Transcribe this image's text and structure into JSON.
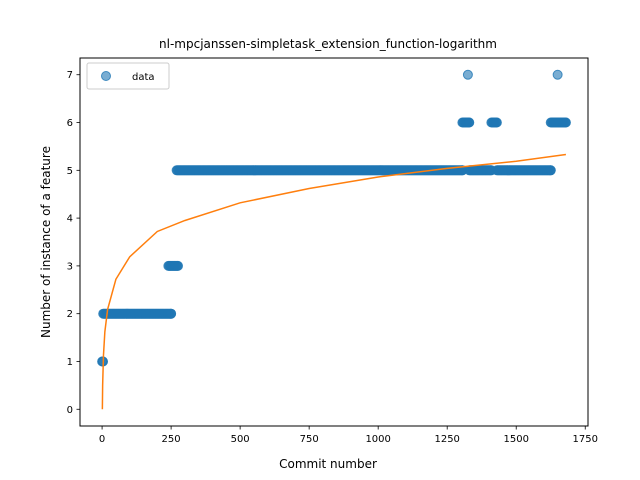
{
  "chart_data": {
    "type": "scatter",
    "title": "nl-mpcjanssen-simpletask_extension_function-logarithm",
    "xlabel": "Commit number",
    "ylabel": "Number of instance of a feature",
    "xlim": [
      -80,
      1760
    ],
    "ylim": [
      -0.35,
      7.35
    ],
    "xticks": [
      0,
      250,
      500,
      750,
      1000,
      1250,
      1500,
      1750
    ],
    "yticks": [
      0,
      1,
      2,
      3,
      4,
      5,
      6,
      7
    ],
    "grid": false,
    "legend": {
      "placement": "top-left",
      "entries": [
        "data"
      ]
    },
    "colors": {
      "data": "#1f77b4",
      "fit": "#ff7f0e"
    },
    "series": [
      {
        "name": "data",
        "kind": "scatter",
        "segments": [
          {
            "x_start": 0,
            "x_end": 3,
            "y": 1
          },
          {
            "x_start": 4,
            "x_end": 250,
            "y": 2
          },
          {
            "x_start": 240,
            "x_end": 275,
            "y": 3
          },
          {
            "x_start": 270,
            "x_end": 1305,
            "y": 5
          },
          {
            "x_start": 1305,
            "x_end": 1330,
            "y": 6
          },
          {
            "x_start": 1330,
            "x_end": 1410,
            "y": 5
          },
          {
            "x_start": 1410,
            "x_end": 1430,
            "y": 6
          },
          {
            "x_start": 1430,
            "x_end": 1625,
            "y": 5
          },
          {
            "x_start": 1625,
            "x_end": 1680,
            "y": 6
          }
        ],
        "points": [
          {
            "x": 1325,
            "y": 7
          },
          {
            "x": 1650,
            "y": 7
          }
        ]
      },
      {
        "kind": "line",
        "x": [
          1,
          2,
          5,
          10,
          20,
          50,
          100,
          200,
          300,
          500,
          750,
          1000,
          1250,
          1500,
          1680
        ],
        "y": [
          0,
          0.5,
          1.13,
          1.62,
          2.09,
          2.72,
          3.19,
          3.72,
          3.95,
          4.32,
          4.62,
          4.86,
          5.04,
          5.19,
          5.33
        ]
      }
    ]
  }
}
